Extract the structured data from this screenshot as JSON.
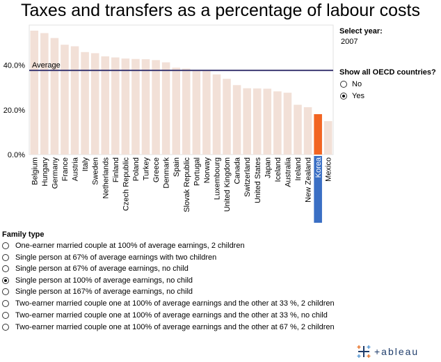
{
  "title": "Taxes and transfers as a percentage of labour costs",
  "select_year": {
    "label": "Select year:",
    "value": "2007"
  },
  "show_all": {
    "label": "Show all OECD countries?",
    "options": [
      {
        "label": "No",
        "checked": false
      },
      {
        "label": "Yes",
        "checked": true
      }
    ]
  },
  "family": {
    "label": "Family type",
    "options": [
      {
        "label": "One-earner married couple at 100% of average earnings, 2 children",
        "checked": false
      },
      {
        "label": "Single person at 67% of average earnings with two children",
        "checked": false
      },
      {
        "label": "Single person at 67% of average earnings, no child",
        "checked": false
      },
      {
        "label": "Single person at 100% of average earnings, no child",
        "checked": true
      },
      {
        "label": "Single person at 167% of average earnings, no child",
        "checked": false
      },
      {
        "label": "Two-earner married couple one at 100% of average earnings and the other at 33 %, 2 children",
        "checked": false
      },
      {
        "label": "Two-earner married couple one at 100% of average earnings and the other at 33 %, no  child",
        "checked": false
      },
      {
        "label": "Two-earner married couple one at 100% of average earnings and the other at 67 %, 2 children",
        "checked": false
      }
    ]
  },
  "logo": {
    "text": "+ableau",
    "icon": "tableau-cross-icon"
  },
  "colors": {
    "bar": "#f2e0d7",
    "highlight_bar": "#f26522",
    "highlight_label_bg": "#3a6fc4",
    "average_line": "#3d3a73"
  },
  "chart_data": {
    "type": "bar",
    "categories": [
      "Belgium",
      "Hungary",
      "Germany",
      "France",
      "Austria",
      "Italy",
      "Sweden",
      "Netherlands",
      "Finland",
      "Czech Republic",
      "Poland",
      "Turkey",
      "Greece",
      "Denmark",
      "Spain",
      "Slovak Republic",
      "Portugal",
      "Norway",
      "Luxembourg",
      "United Kingdom",
      "Canada",
      "Switzerland",
      "United States",
      "Japan",
      "Iceland",
      "Australia",
      "Ireland",
      "New Zealand",
      "Korea",
      "Mexico"
    ],
    "values": [
      55.5,
      54.4,
      52.2,
      49.2,
      48.5,
      45.9,
      45.4,
      44.0,
      43.5,
      43.0,
      42.8,
      42.7,
      42.3,
      41.3,
      38.9,
      38.5,
      37.9,
      37.4,
      35.9,
      33.9,
      31.1,
      29.7,
      29.6,
      29.5,
      28.3,
      27.7,
      22.3,
      21.2,
      18.1,
      15.0
    ],
    "highlight": "Korea",
    "average": {
      "label": "Average",
      "value": 37.7
    },
    "yticks": [
      "0.0%",
      "20.0%",
      "40.0%"
    ],
    "ylim": [
      0,
      58
    ],
    "grid": false
  }
}
